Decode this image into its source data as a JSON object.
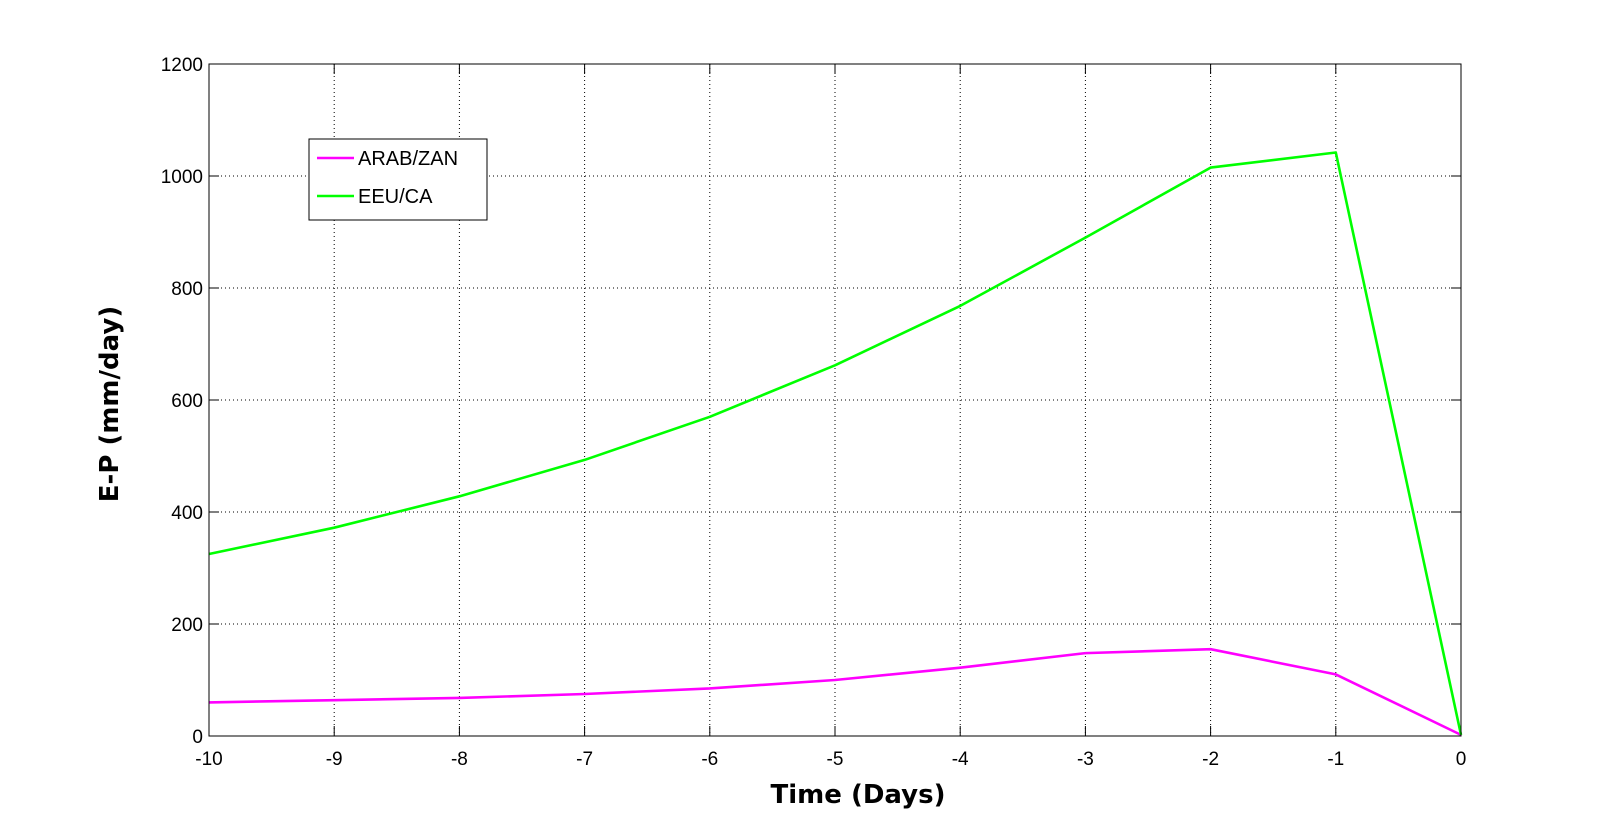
{
  "chart_data": {
    "type": "line",
    "title": "",
    "xlabel": "Time (Days)",
    "ylabel": "E-P (mm/day)",
    "xlim": [
      -10,
      0
    ],
    "ylim": [
      0,
      1200
    ],
    "x_ticks": [
      "-10",
      "-9",
      "-8",
      "-7",
      "-6",
      "-5",
      "-4",
      "-3",
      "-2",
      "-1",
      "0"
    ],
    "y_ticks": [
      "0",
      "200",
      "400",
      "600",
      "800",
      "1000",
      "1200"
    ],
    "grid": true,
    "grid_style": "dotted",
    "legend_position": "top-left",
    "x": [
      -10,
      -9,
      -8,
      -7,
      -6,
      -5,
      -4,
      -3,
      -2,
      -1,
      0
    ],
    "series": [
      {
        "name": "ARAB/ZAN",
        "color": "#ff00ff",
        "values": [
          60,
          64,
          68,
          75,
          85,
          100,
          122,
          148,
          155,
          110,
          2
        ]
      },
      {
        "name": "EEU/CA",
        "color": "#00ff00",
        "values": [
          325,
          372,
          428,
          493,
          570,
          662,
          768,
          890,
          1015,
          1042,
          2
        ]
      }
    ]
  }
}
